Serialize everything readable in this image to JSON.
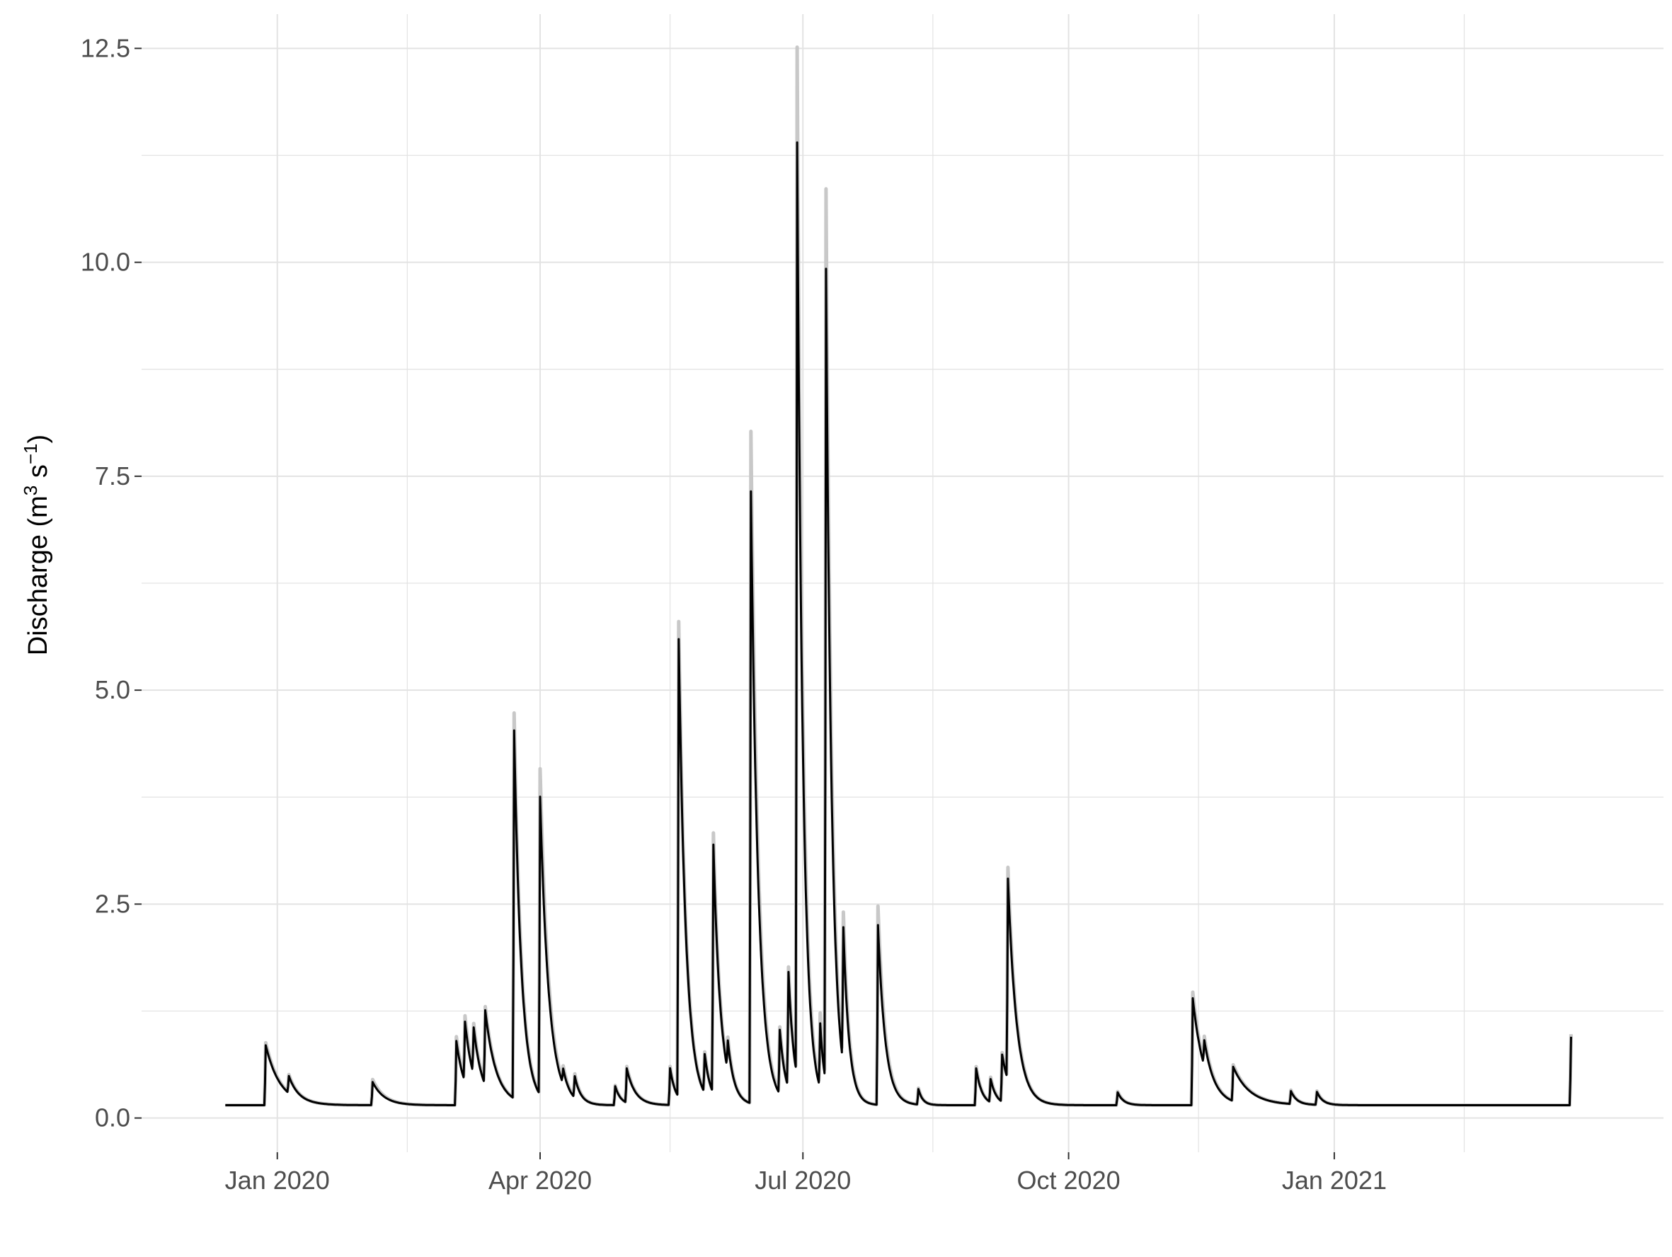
{
  "chart_data": {
    "type": "line",
    "title": "",
    "xlabel": "",
    "ylabel": "Discharge (m³ s⁻¹)",
    "ylabel_parts": {
      "main": "Discharge (m",
      "sup1": "3",
      "mid": " s",
      "sup2": "−1",
      "end": ")"
    },
    "y_ticks": [
      0.0,
      2.5,
      5.0,
      7.5,
      10.0,
      12.5
    ],
    "y_tick_labels": [
      "0.0",
      "2.5",
      "5.0",
      "7.5",
      "10.0",
      "12.5"
    ],
    "ylim": [
      -0.4,
      12.9
    ],
    "xlim": [
      "2019-11-15",
      "2021-04-25"
    ],
    "x_ticks": [
      "2020-01-01",
      "2020-04-01",
      "2020-07-01",
      "2020-10-01",
      "2021-01-01"
    ],
    "x_tick_labels": [
      "Jan 2020",
      "Apr 2020",
      "Jul 2020",
      "Oct 2020",
      "Jan 2021"
    ],
    "x_minor_ticks": [
      "2020-02-15",
      "2020-05-16",
      "2020-08-15",
      "2020-11-15",
      "2021-02-15"
    ],
    "grid": true,
    "legend": "none",
    "colors": {
      "series": "#000000",
      "uncertainty": "#c8c8c8",
      "grid": "#e3e3e3"
    },
    "baseflow": 0.15,
    "series": [
      {
        "role": "observed",
        "start": "2019-12-14",
        "end": "2021-03-24"
      }
    ],
    "events": [
      {
        "date": "2019-12-28",
        "peak": 0.85,
        "upper": 0.88,
        "decay": 5
      },
      {
        "date": "2020-01-05",
        "peak": 0.35,
        "upper": 0.36,
        "decay": 3
      },
      {
        "date": "2020-02-03",
        "peak": 0.42,
        "upper": 0.45,
        "decay": 4
      },
      {
        "date": "2020-03-03",
        "peak": 0.9,
        "upper": 0.95,
        "decay": 3
      },
      {
        "date": "2020-03-06",
        "peak": 0.85,
        "upper": 0.9,
        "decay": 3
      },
      {
        "date": "2020-03-09",
        "peak": 0.7,
        "upper": 0.72,
        "decay": 3
      },
      {
        "date": "2020-03-13",
        "peak": 1.02,
        "upper": 1.05,
        "decay": 4
      },
      {
        "date": "2020-03-23",
        "peak": 4.45,
        "upper": 4.65,
        "decay": 2.5
      },
      {
        "date": "2020-04-01",
        "peak": 3.63,
        "upper": 3.95,
        "decay": 3
      },
      {
        "date": "2020-04-09",
        "peak": 0.33,
        "upper": 0.34,
        "decay": 2
      },
      {
        "date": "2020-04-13",
        "peak": 0.4,
        "upper": 0.42,
        "decay": 2
      },
      {
        "date": "2020-04-27",
        "peak": 0.37,
        "upper": 0.38,
        "decay": 2
      },
      {
        "date": "2020-05-01",
        "peak": 0.55,
        "upper": 0.57,
        "decay": 3
      },
      {
        "date": "2020-05-16",
        "peak": 0.58,
        "upper": 0.6,
        "decay": 2
      },
      {
        "date": "2020-05-19",
        "peak": 5.5,
        "upper": 5.7,
        "decay": 2.5
      },
      {
        "date": "2020-05-28",
        "peak": 0.6,
        "upper": 0.62,
        "decay": 2
      },
      {
        "date": "2020-05-31",
        "peak": 3.05,
        "upper": 3.18,
        "decay": 2.5
      },
      {
        "date": "2020-06-05",
        "peak": 0.5,
        "upper": 0.52,
        "decay": 2
      },
      {
        "date": "2020-06-13",
        "peak": 7.3,
        "upper": 8.0,
        "decay": 2.5
      },
      {
        "date": "2020-06-23",
        "peak": 0.9,
        "upper": 0.92,
        "decay": 2
      },
      {
        "date": "2020-06-26",
        "peak": 1.5,
        "upper": 1.55,
        "decay": 2
      },
      {
        "date": "2020-06-29",
        "peak": 11.05,
        "upper": 12.15,
        "decay": 2
      },
      {
        "date": "2020-07-07",
        "peak": 0.9,
        "upper": 1.0,
        "decay": 1.5
      },
      {
        "date": "2020-07-09",
        "peak": 9.65,
        "upper": 10.55,
        "decay": 2
      },
      {
        "date": "2020-07-15",
        "peak": 1.75,
        "upper": 1.88,
        "decay": 2
      },
      {
        "date": "2020-07-27",
        "peak": 2.25,
        "upper": 2.47,
        "decay": 2.5
      },
      {
        "date": "2020-08-10",
        "peak": 0.33,
        "upper": 0.34,
        "decay": 1.5
      },
      {
        "date": "2020-08-30",
        "peak": 0.58,
        "upper": 0.6,
        "decay": 2
      },
      {
        "date": "2020-09-04",
        "peak": 0.42,
        "upper": 0.44,
        "decay": 2
      },
      {
        "date": "2020-09-08",
        "peak": 0.7,
        "upper": 0.72,
        "decay": 3
      },
      {
        "date": "2020-09-10",
        "peak": 2.5,
        "upper": 2.62,
        "decay": 3
      },
      {
        "date": "2020-10-18",
        "peak": 0.3,
        "upper": 0.31,
        "decay": 2
      },
      {
        "date": "2020-11-13",
        "peak": 1.4,
        "upper": 1.47,
        "decay": 4
      },
      {
        "date": "2020-11-17",
        "peak": 0.45,
        "upper": 0.47,
        "decay": 3
      },
      {
        "date": "2020-11-27",
        "peak": 0.55,
        "upper": 0.57,
        "decay": 6
      },
      {
        "date": "2020-12-17",
        "peak": 0.3,
        "upper": 0.31,
        "decay": 2
      },
      {
        "date": "2020-12-26",
        "peak": 0.3,
        "upper": 0.31,
        "decay": 2
      },
      {
        "date": "2021-03-24",
        "peak": 0.95,
        "upper": 0.98,
        "decay": 2
      }
    ]
  }
}
